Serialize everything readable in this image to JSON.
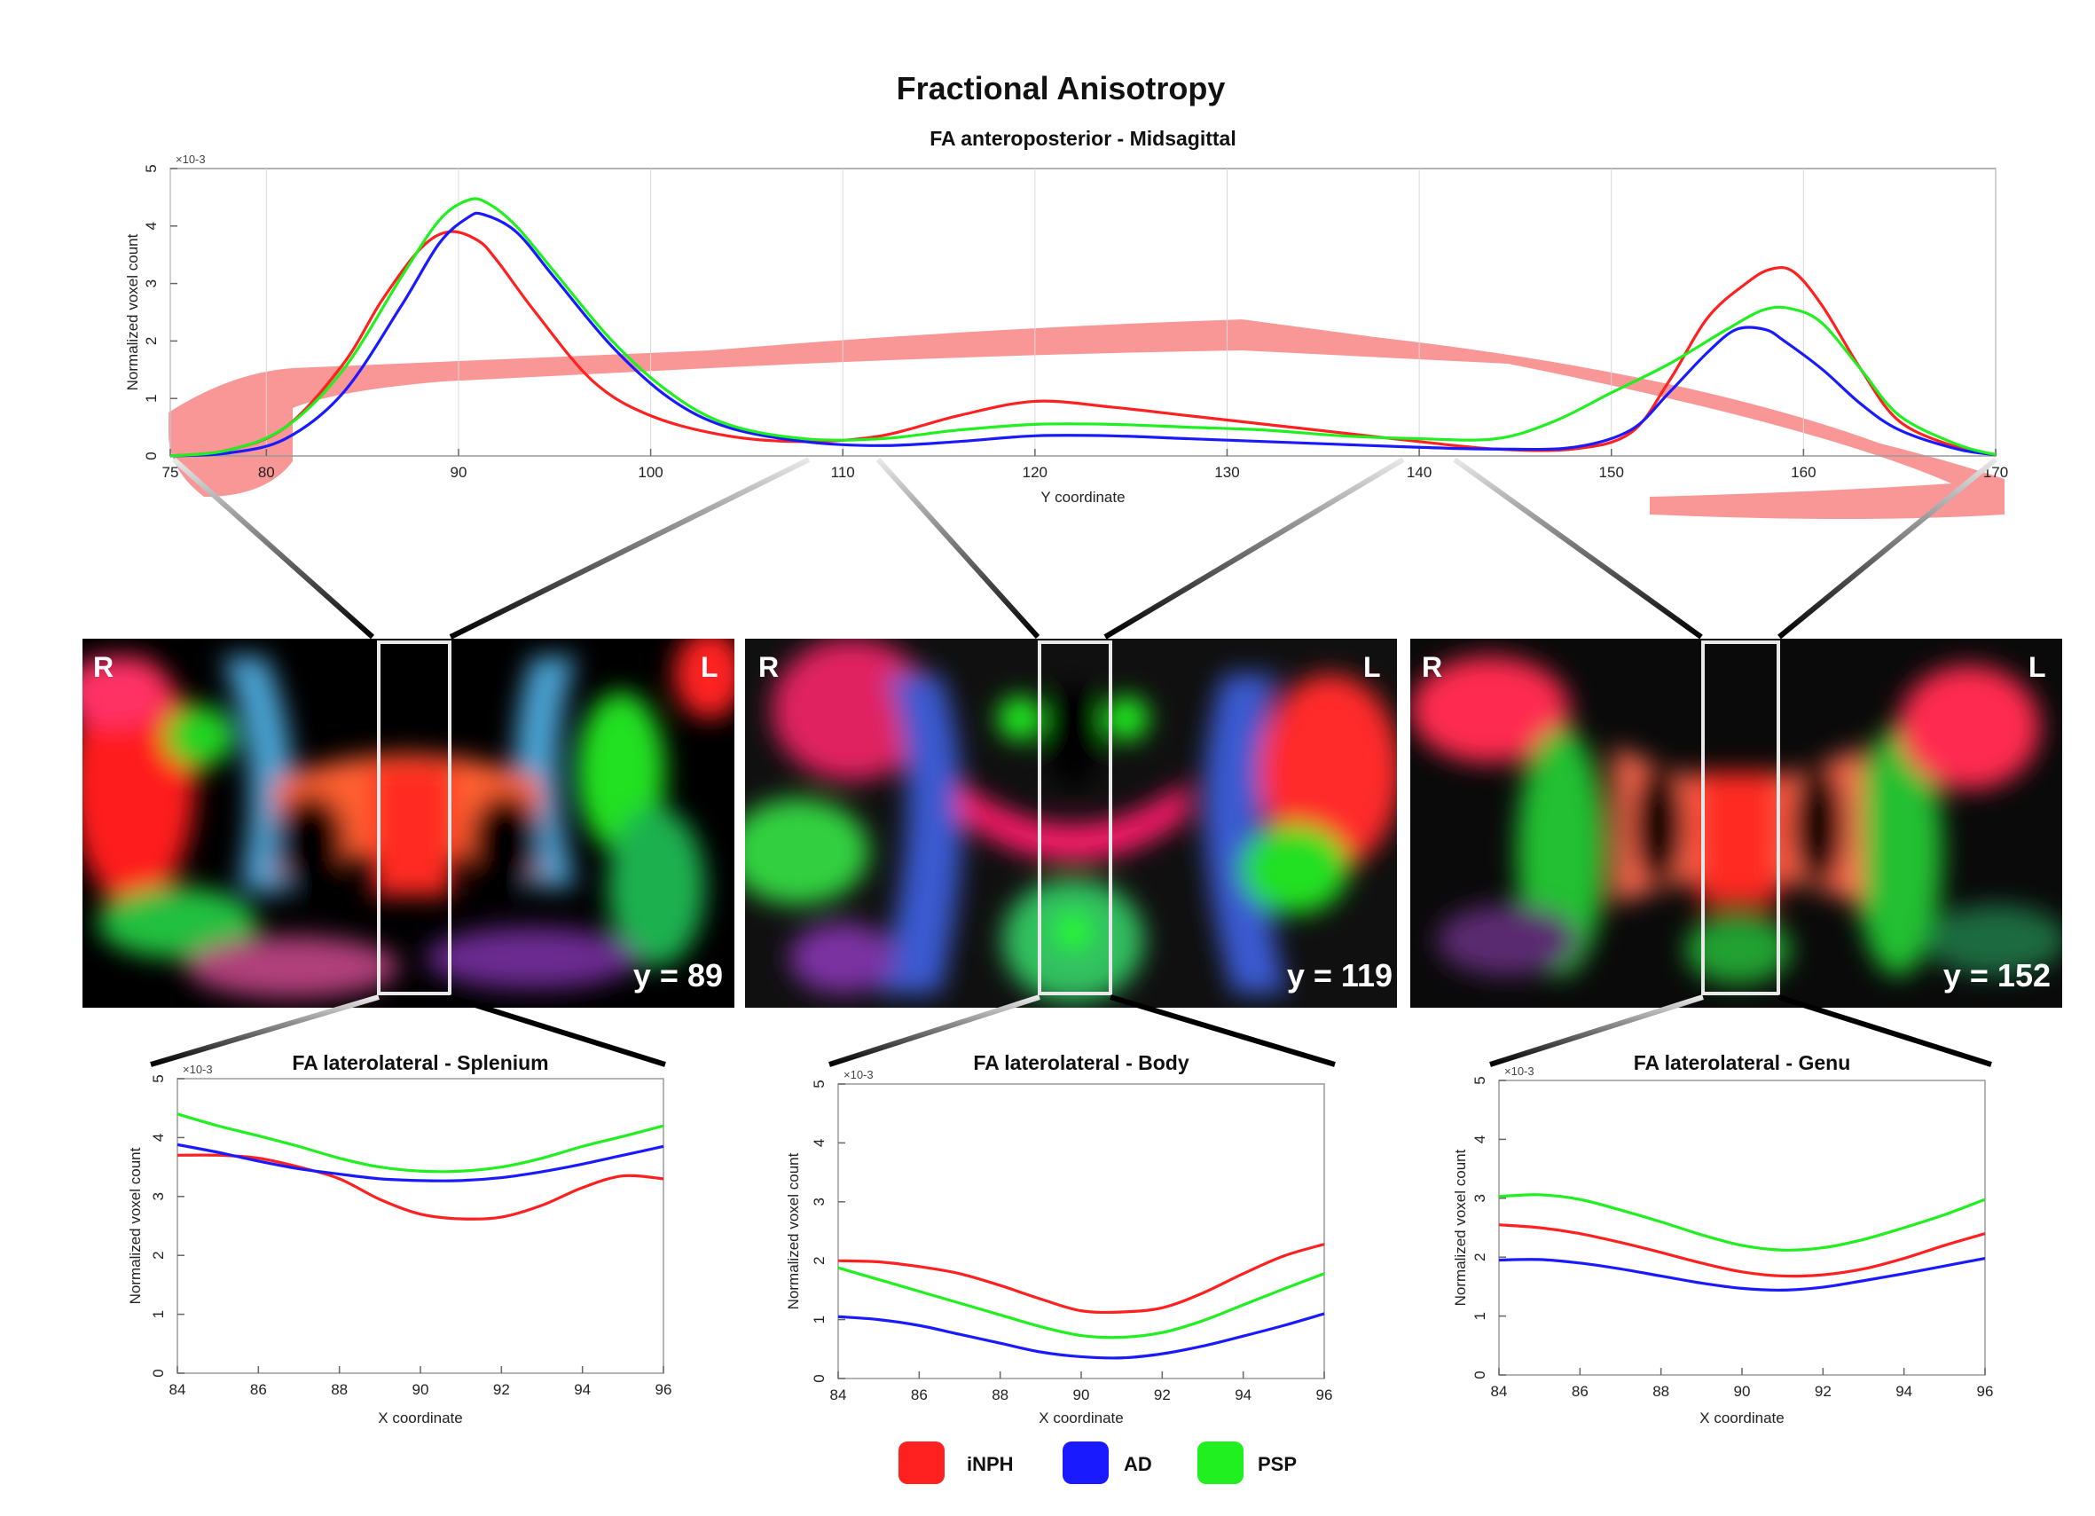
{
  "title": "Fractional Anisotropy",
  "colors": {
    "iNPH": "#ff2020",
    "AD": "#1a1aff",
    "PSP": "#20f020",
    "tract": "#f88c8c"
  },
  "legend": [
    {
      "name": "iNPH",
      "color": "#ff2020"
    },
    {
      "name": "AD",
      "color": "#1a1aff"
    },
    {
      "name": "PSP",
      "color": "#20f020"
    }
  ],
  "chart_data": [
    {
      "type": "line",
      "title": "FA anteroposterior - Midsagittal",
      "xlabel": "Y coordinate",
      "ylabel": "Normalized voxel count",
      "y_multiplier": "×10-3",
      "xlim": [
        75,
        170
      ],
      "ylim": [
        0,
        5
      ],
      "xticks": [
        75,
        80,
        90,
        100,
        110,
        120,
        130,
        140,
        150,
        160,
        170
      ],
      "yticks": [
        0,
        1,
        2,
        3,
        4,
        5
      ],
      "grid": "vertical",
      "series": [
        {
          "name": "iNPH",
          "color": "#ff2020",
          "x": [
            75,
            78,
            81,
            84,
            86,
            88,
            89.5,
            91,
            92,
            94,
            97,
            100,
            104,
            108,
            112,
            116,
            120,
            124,
            128,
            132,
            136,
            140,
            144,
            148,
            151,
            153,
            155,
            157,
            158.3,
            159.5,
            161,
            163,
            165,
            168,
            170
          ],
          "y": [
            0,
            0.1,
            0.5,
            1.6,
            2.7,
            3.6,
            3.9,
            3.75,
            3.4,
            2.5,
            1.3,
            0.7,
            0.35,
            0.25,
            0.35,
            0.7,
            0.95,
            0.85,
            0.7,
            0.55,
            0.4,
            0.25,
            0.12,
            0.12,
            0.4,
            1.3,
            2.4,
            3.0,
            3.25,
            3.2,
            2.6,
            1.5,
            0.6,
            0.15,
            0.02
          ]
        },
        {
          "name": "AD",
          "color": "#1a1aff",
          "x": [
            75,
            78,
            81,
            84,
            87,
            89,
            90.5,
            91.3,
            93,
            95,
            98,
            101,
            104,
            108,
            112,
            116,
            120,
            124,
            128,
            132,
            136,
            140,
            144,
            148,
            151,
            153,
            155,
            156.5,
            158,
            159,
            161,
            163,
            165,
            168,
            170
          ],
          "y": [
            0,
            0.05,
            0.3,
            1.1,
            2.6,
            3.7,
            4.15,
            4.2,
            3.9,
            3.1,
            1.9,
            1.0,
            0.5,
            0.25,
            0.18,
            0.25,
            0.35,
            0.35,
            0.3,
            0.25,
            0.2,
            0.15,
            0.12,
            0.15,
            0.45,
            1.1,
            1.8,
            2.2,
            2.2,
            2.0,
            1.5,
            0.9,
            0.45,
            0.12,
            0.02
          ]
        },
        {
          "name": "PSP",
          "color": "#20f020",
          "x": [
            75,
            78,
            81,
            84,
            87,
            89,
            90.5,
            91.5,
            93,
            95,
            98,
            101,
            104,
            108,
            112,
            116,
            120,
            124,
            128,
            132,
            136,
            140,
            144,
            147,
            150,
            153,
            156,
            158,
            159.5,
            161,
            163,
            165,
            168,
            170
          ],
          "y": [
            0,
            0.1,
            0.5,
            1.5,
            3.1,
            4.1,
            4.45,
            4.4,
            4.0,
            3.2,
            2.0,
            1.1,
            0.55,
            0.3,
            0.3,
            0.45,
            0.55,
            0.55,
            0.5,
            0.45,
            0.35,
            0.3,
            0.3,
            0.6,
            1.1,
            1.6,
            2.2,
            2.55,
            2.55,
            2.3,
            1.5,
            0.7,
            0.2,
            0.02
          ]
        }
      ]
    },
    {
      "type": "line",
      "title": "FA laterolateral - Splenium",
      "xlabel": "X coordinate",
      "ylabel": "Normalized voxel count",
      "y_multiplier": "×10-3",
      "xlim": [
        84,
        96
      ],
      "ylim": [
        0,
        5
      ],
      "xticks": [
        84,
        86,
        88,
        90,
        92,
        94,
        96
      ],
      "yticks": [
        0,
        1,
        2,
        3,
        4,
        5
      ],
      "series": [
        {
          "name": "iNPH",
          "color": "#ff2020",
          "x": [
            84,
            85,
            86,
            87,
            88,
            89,
            90,
            91,
            92,
            93,
            94,
            95,
            96
          ],
          "y": [
            3.7,
            3.7,
            3.65,
            3.5,
            3.3,
            2.95,
            2.7,
            2.62,
            2.65,
            2.85,
            3.15,
            3.35,
            3.3
          ]
        },
        {
          "name": "AD",
          "color": "#1a1aff",
          "x": [
            84,
            85,
            86,
            87,
            88,
            89,
            90,
            91,
            92,
            93,
            94,
            95,
            96
          ],
          "y": [
            3.88,
            3.75,
            3.6,
            3.47,
            3.38,
            3.3,
            3.27,
            3.27,
            3.32,
            3.42,
            3.55,
            3.7,
            3.85
          ]
        },
        {
          "name": "PSP",
          "color": "#20f020",
          "x": [
            84,
            85,
            86,
            87,
            88,
            89,
            90,
            91,
            92,
            93,
            94,
            95,
            96
          ],
          "y": [
            4.4,
            4.2,
            4.03,
            3.85,
            3.65,
            3.5,
            3.43,
            3.43,
            3.5,
            3.65,
            3.85,
            4.02,
            4.2
          ]
        }
      ]
    },
    {
      "type": "line",
      "title": "FA laterolateral - Body",
      "xlabel": "X coordinate",
      "ylabel": "Normalized voxel count",
      "y_multiplier": "×10-3",
      "xlim": [
        84,
        96
      ],
      "ylim": [
        0,
        5
      ],
      "xticks": [
        84,
        86,
        88,
        90,
        92,
        94,
        96
      ],
      "yticks": [
        0,
        1,
        2,
        3,
        4,
        5
      ],
      "series": [
        {
          "name": "iNPH",
          "color": "#ff2020",
          "x": [
            84,
            85,
            86,
            87,
            88,
            89,
            90,
            91,
            92,
            93,
            94,
            95,
            96
          ],
          "y": [
            2.0,
            1.98,
            1.9,
            1.78,
            1.58,
            1.35,
            1.15,
            1.13,
            1.2,
            1.45,
            1.78,
            2.08,
            2.28
          ]
        },
        {
          "name": "AD",
          "color": "#1a1aff",
          "x": [
            84,
            85,
            86,
            87,
            88,
            89,
            90,
            91,
            92,
            93,
            94,
            95,
            96
          ],
          "y": [
            1.05,
            1.0,
            0.9,
            0.75,
            0.6,
            0.45,
            0.37,
            0.35,
            0.42,
            0.55,
            0.72,
            0.9,
            1.1
          ]
        },
        {
          "name": "PSP",
          "color": "#20f020",
          "x": [
            84,
            85,
            86,
            87,
            88,
            89,
            90,
            91,
            92,
            93,
            94,
            95,
            96
          ],
          "y": [
            1.88,
            1.68,
            1.48,
            1.28,
            1.08,
            0.88,
            0.73,
            0.7,
            0.78,
            0.98,
            1.25,
            1.52,
            1.78
          ]
        }
      ]
    },
    {
      "type": "line",
      "title": "FA laterolateral - Genu",
      "xlabel": "X coordinate",
      "ylabel": "Normalized voxel count",
      "y_multiplier": "×10-3",
      "xlim": [
        84,
        96
      ],
      "ylim": [
        0,
        5
      ],
      "xticks": [
        84,
        86,
        88,
        90,
        92,
        94,
        96
      ],
      "yticks": [
        0,
        1,
        2,
        3,
        4,
        5
      ],
      "series": [
        {
          "name": "iNPH",
          "color": "#ff2020",
          "x": [
            84,
            85,
            86,
            87,
            88,
            89,
            90,
            91,
            92,
            93,
            94,
            95,
            96
          ],
          "y": [
            2.55,
            2.5,
            2.4,
            2.25,
            2.08,
            1.9,
            1.75,
            1.68,
            1.7,
            1.8,
            1.98,
            2.2,
            2.4
          ]
        },
        {
          "name": "AD",
          "color": "#1a1aff",
          "x": [
            84,
            85,
            86,
            87,
            88,
            89,
            90,
            91,
            92,
            93,
            94,
            95,
            96
          ],
          "y": [
            1.95,
            1.96,
            1.9,
            1.8,
            1.68,
            1.56,
            1.47,
            1.44,
            1.49,
            1.6,
            1.72,
            1.85,
            1.98
          ]
        },
        {
          "name": "PSP",
          "color": "#20f020",
          "x": [
            84,
            85,
            86,
            87,
            88,
            89,
            90,
            91,
            92,
            93,
            94,
            95,
            96
          ],
          "y": [
            3.03,
            3.06,
            2.98,
            2.8,
            2.6,
            2.38,
            2.2,
            2.12,
            2.16,
            2.3,
            2.5,
            2.72,
            2.98
          ]
        }
      ]
    }
  ],
  "slices": [
    {
      "left_label": "R",
      "right_label": "L",
      "slice_label": "y = 89"
    },
    {
      "left_label": "R",
      "right_label": "L",
      "slice_label": "y = 119"
    },
    {
      "left_label": "R",
      "right_label": "L",
      "slice_label": "y = 152"
    }
  ]
}
